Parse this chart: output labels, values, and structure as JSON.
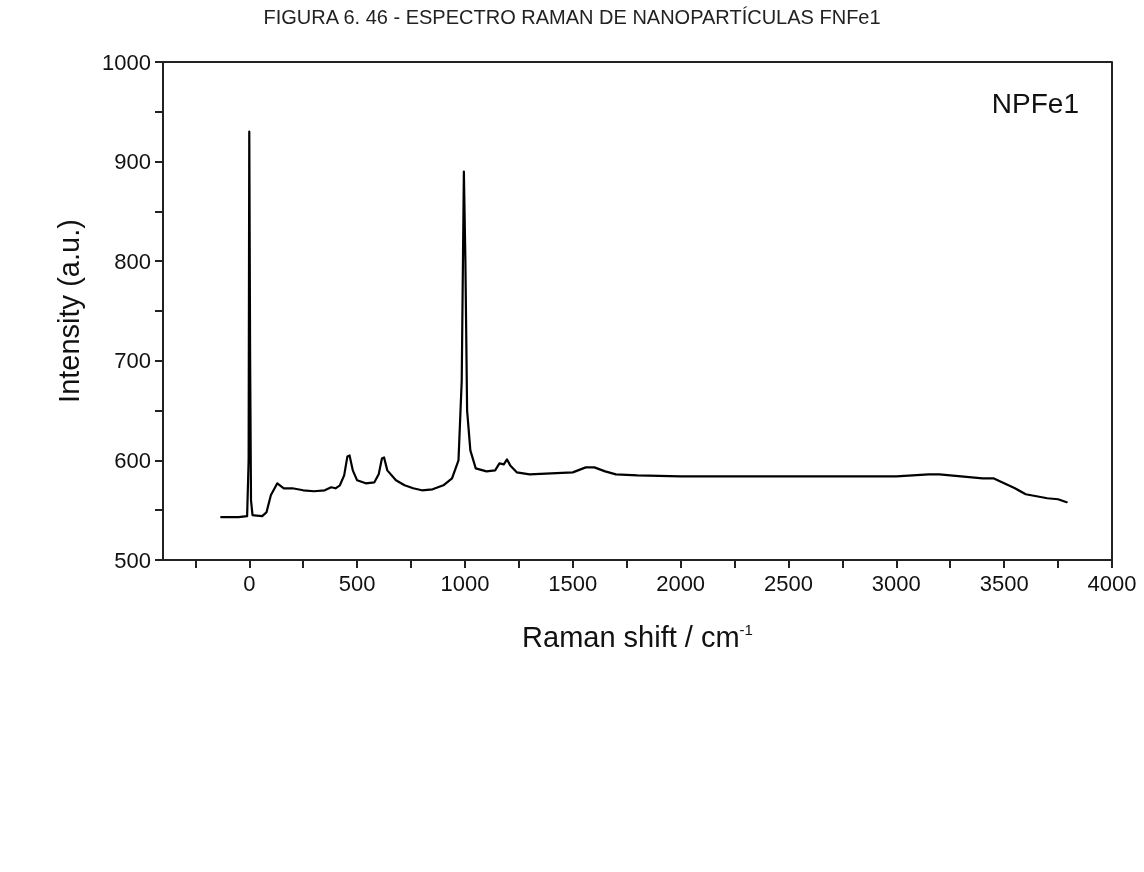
{
  "chart_data": {
    "type": "line",
    "title": "FIGURA 6. 46 - ESPECTRO RAMAN DE NANOPARTÍCULAS FNFe1",
    "xlabel": "Raman shift / cm$^{-1}$",
    "ylabel": "Intensity (a.u.)",
    "annotations": [
      "NPFe1"
    ],
    "xlim": [
      -400,
      4000
    ],
    "xticks": [
      {
        "value": -250,
        "label": null
      },
      0,
      {
        "value": 250,
        "label": null
      },
      500,
      {
        "value": 750,
        "label": null
      },
      1000,
      {
        "value": 1250,
        "label": null
      },
      1500,
      {
        "value": 1750,
        "label": null
      },
      2000,
      {
        "value": 2250,
        "label": null
      },
      2500,
      {
        "value": 2750,
        "label": null
      },
      3000,
      {
        "value": 3250,
        "label": null
      },
      3500,
      {
        "value": 3750,
        "label": null
      },
      4000
    ],
    "ylim": [
      500,
      1000
    ],
    "yticks": [
      500,
      {
        "value": 550,
        "label": null
      },
      600,
      {
        "value": 650,
        "label": null
      },
      700,
      {
        "value": 750,
        "label": null
      },
      800,
      {
        "value": 850,
        "label": null
      },
      900,
      {
        "value": 950,
        "label": null
      },
      1000
    ],
    "grid": false,
    "legend": false,
    "marker": "none",
    "line_style": "solid",
    "series": [
      {
        "color": "#000000",
        "x": [
          -130,
          -50,
          -10,
          -3,
          0,
          4,
          8,
          15,
          60,
          80,
          100,
          130,
          160,
          200,
          250,
          300,
          350,
          380,
          400,
          420,
          440,
          455,
          465,
          480,
          500,
          540,
          580,
          600,
          615,
          625,
          640,
          680,
          720,
          760,
          800,
          850,
          900,
          940,
          970,
          985,
          995,
          1002,
          1010,
          1025,
          1050,
          1100,
          1140,
          1160,
          1180,
          1195,
          1210,
          1240,
          1300,
          1400,
          1500,
          1560,
          1600,
          1650,
          1700,
          1800,
          2000,
          2200,
          2500,
          2800,
          3000,
          3150,
          3200,
          3300,
          3400,
          3450,
          3500,
          3550,
          3600,
          3650,
          3700,
          3750,
          3790
        ],
        "values": [
          543,
          543,
          544,
          600,
          930,
          700,
          560,
          545,
          544,
          548,
          565,
          577,
          572,
          572,
          570,
          569,
          570,
          573,
          572,
          575,
          585,
          604,
          605,
          590,
          580,
          577,
          578,
          586,
          602,
          603,
          590,
          580,
          575,
          572,
          570,
          571,
          575,
          582,
          600,
          680,
          890,
          800,
          650,
          610,
          592,
          589,
          590,
          597,
          596,
          601,
          595,
          588,
          586,
          587,
          588,
          593,
          593,
          589,
          586,
          585,
          584,
          584,
          584,
          584,
          584,
          586,
          586,
          584,
          582,
          582,
          577,
          572,
          566,
          564,
          562,
          561,
          558
        ]
      }
    ]
  }
}
